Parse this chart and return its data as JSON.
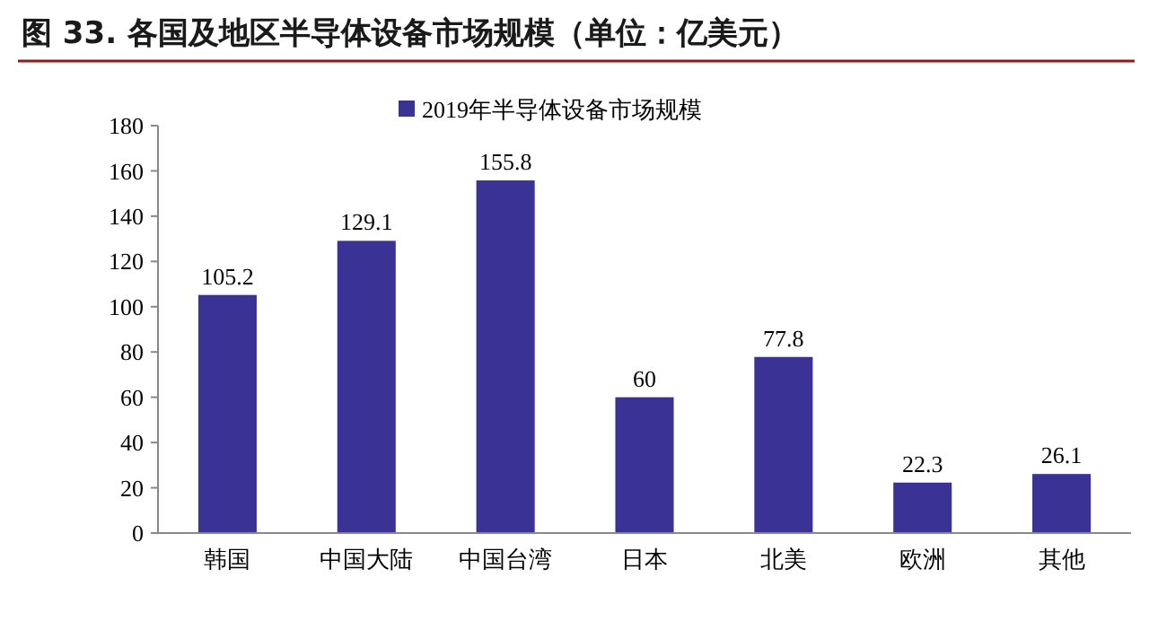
{
  "chart_data": {
    "type": "bar",
    "title": "图 33. 各国及地区半导体设备市场规模（单位：亿美元）",
    "categories": [
      "韩国",
      "中国大陆",
      "中国台湾",
      "日本",
      "北美",
      "欧洲",
      "其他"
    ],
    "series": [
      {
        "name": "2019年半导体设备市场规模",
        "color": "#3a3294",
        "values": [
          105.2,
          129.1,
          155.8,
          60,
          77.8,
          22.3,
          26.1
        ]
      }
    ],
    "ylim": [
      0,
      180
    ],
    "yticks": [
      0,
      20,
      40,
      60,
      80,
      100,
      120,
      140,
      160,
      180
    ],
    "grid": false,
    "legend": "top",
    "data_labels": true
  }
}
